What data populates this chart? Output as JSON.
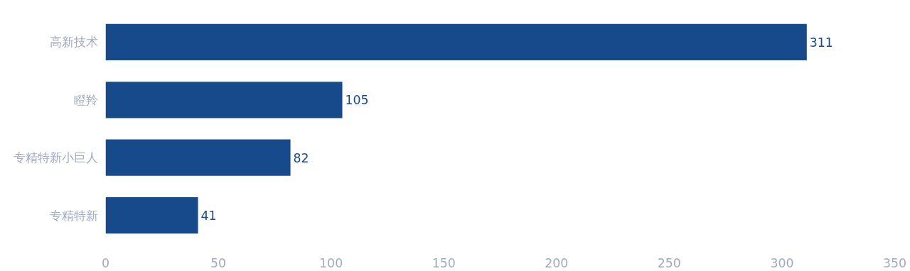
{
  "chart_data": {
    "type": "bar",
    "orientation": "horizontal",
    "categories": [
      "高新技术",
      "瞪羚",
      "专精特新小巨人",
      "专精特新"
    ],
    "values": [
      311,
      105,
      82,
      41
    ],
    "color": "#174a8b",
    "xlim": [
      0,
      350
    ],
    "xticks": [
      0,
      50,
      100,
      150,
      200,
      250,
      300,
      350
    ],
    "grid": false,
    "data_labels": true
  }
}
